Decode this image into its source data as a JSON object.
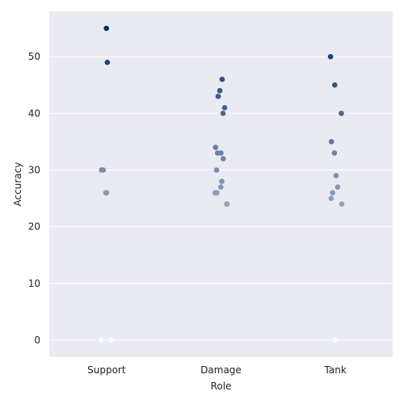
{
  "chart_data": {
    "type": "scatter",
    "style": "strip",
    "xlabel": "Role",
    "ylabel": "Accuracy",
    "categories": [
      "Support",
      "Damage",
      "Tank"
    ],
    "ylim": [
      -3,
      58
    ],
    "yticks": [
      0,
      10,
      20,
      30,
      40,
      50
    ],
    "grid": true,
    "legend": "none",
    "colors": {
      "background": "#eaeaf2",
      "grid": "#ffffff",
      "palette": "Blues (darker = higher accuracy)"
    },
    "points": [
      {
        "category": "Support",
        "value": 55
      },
      {
        "category": "Support",
        "value": 49
      },
      {
        "category": "Support",
        "value": 30
      },
      {
        "category": "Support",
        "value": 30
      },
      {
        "category": "Support",
        "value": 26
      },
      {
        "category": "Support",
        "value": 26
      },
      {
        "category": "Support",
        "value": 0
      },
      {
        "category": "Support",
        "value": 0
      },
      {
        "category": "Damage",
        "value": 46
      },
      {
        "category": "Damage",
        "value": 44
      },
      {
        "category": "Damage",
        "value": 43
      },
      {
        "category": "Damage",
        "value": 41
      },
      {
        "category": "Damage",
        "value": 40
      },
      {
        "category": "Damage",
        "value": 34
      },
      {
        "category": "Damage",
        "value": 33
      },
      {
        "category": "Damage",
        "value": 33
      },
      {
        "category": "Damage",
        "value": 32
      },
      {
        "category": "Damage",
        "value": 30
      },
      {
        "category": "Damage",
        "value": 28
      },
      {
        "category": "Damage",
        "value": 27
      },
      {
        "category": "Damage",
        "value": 26
      },
      {
        "category": "Damage",
        "value": 26
      },
      {
        "category": "Damage",
        "value": 24
      },
      {
        "category": "Damage",
        "value": 24
      },
      {
        "category": "Tank",
        "value": 50
      },
      {
        "category": "Tank",
        "value": 45
      },
      {
        "category": "Tank",
        "value": 40
      },
      {
        "category": "Tank",
        "value": 35
      },
      {
        "category": "Tank",
        "value": 33
      },
      {
        "category": "Tank",
        "value": 29
      },
      {
        "category": "Tank",
        "value": 27
      },
      {
        "category": "Tank",
        "value": 26
      },
      {
        "category": "Tank",
        "value": 25
      },
      {
        "category": "Tank",
        "value": 24
      },
      {
        "category": "Tank",
        "value": 0
      }
    ]
  }
}
